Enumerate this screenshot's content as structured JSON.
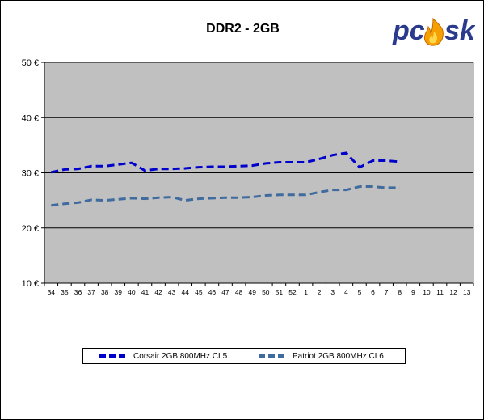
{
  "chart_data": {
    "type": "line",
    "title": "DDR2 - 2GB",
    "xlabel": "",
    "ylabel": "",
    "ylim": [
      10,
      50
    ],
    "ytick_labels": [
      "10 €",
      "20 €",
      "30 €",
      "40 €",
      "50 €"
    ],
    "yticks": [
      10,
      20,
      30,
      40,
      50
    ],
    "categories": [
      "34",
      "35",
      "36",
      "37",
      "38",
      "39",
      "40",
      "41",
      "42",
      "43",
      "44",
      "45",
      "46",
      "47",
      "48",
      "49",
      "50",
      "51",
      "52",
      "1",
      "2",
      "3",
      "4",
      "5",
      "6",
      "7",
      "8",
      "9",
      "10",
      "11",
      "12",
      "13"
    ],
    "grid": true,
    "legend_position": "bottom",
    "series": [
      {
        "name": "Corsair 2GB 800MHz CL5",
        "color": "#0000cc",
        "values": [
          30.1,
          30.6,
          30.7,
          31.2,
          31.2,
          31.5,
          31.8,
          30.4,
          30.7,
          30.7,
          30.8,
          31.0,
          31.1,
          31.1,
          31.2,
          31.3,
          31.7,
          31.9,
          31.9,
          31.9,
          32.5,
          33.2,
          33.6,
          31.0,
          32.2,
          32.2,
          32.0,
          null,
          null,
          null,
          null,
          null
        ]
      },
      {
        "name": "Patriot 2GB 800MHz CL6",
        "color": "#3f6b9e",
        "values": [
          24.1,
          24.4,
          24.6,
          25.1,
          25.0,
          25.2,
          25.4,
          25.3,
          25.5,
          25.6,
          25.0,
          25.3,
          25.4,
          25.5,
          25.5,
          25.6,
          25.9,
          26.0,
          26.0,
          26.0,
          26.5,
          26.9,
          26.9,
          27.5,
          27.5,
          27.3,
          27.3,
          null,
          null,
          null,
          null,
          null
        ]
      }
    ]
  },
  "logo": {
    "text": "pcsk",
    "icon": "flame-icon",
    "text_color": "#2a3a8c",
    "flame_color": "#f5a000"
  },
  "colors": {
    "plot_background": "#c0c0c0",
    "gridline": "#000000"
  }
}
